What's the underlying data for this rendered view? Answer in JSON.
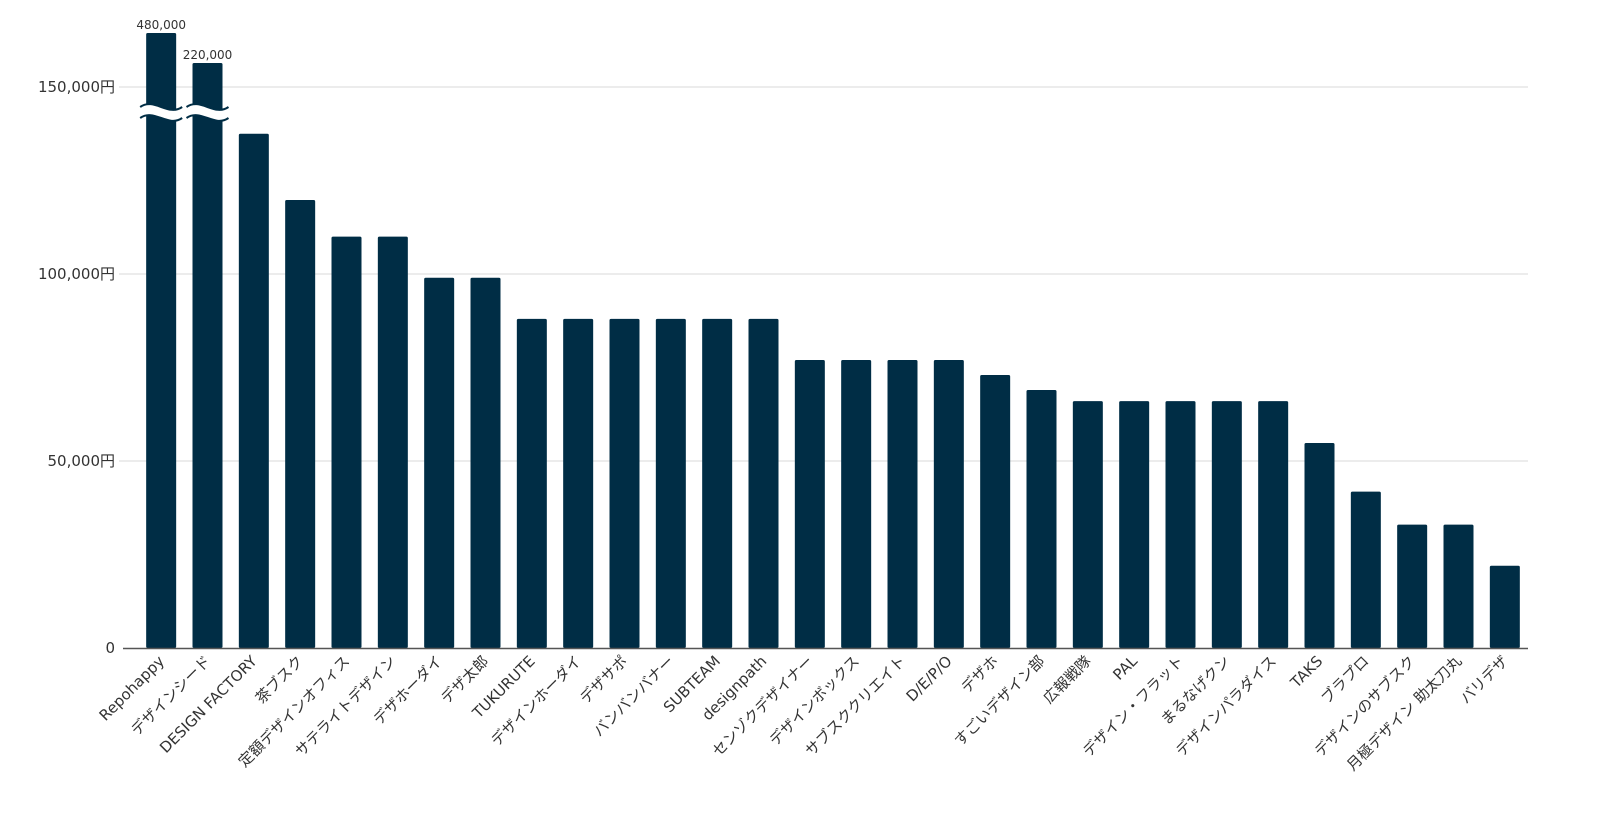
{
  "chart_data": {
    "type": "bar",
    "title": "",
    "xlabel": "",
    "ylabel": "",
    "ylim": [
      0,
      165000
    ],
    "yticks": [
      0,
      50000,
      100000,
      150000
    ],
    "ytick_labels": [
      "0",
      "50,000円",
      "100,000円",
      "150,000円"
    ],
    "grid": true,
    "axis_break": {
      "above": 145000
    },
    "colors": {
      "bar": "#002d45",
      "grid": "#d9d9d9",
      "axis": "#555555",
      "text": "#333333"
    },
    "categories": [
      "Repohappy",
      "デザインシード",
      "DESIGN FACTORY",
      "茶ブスク",
      "定額デザインオフィス",
      "サテライトデザイン",
      "デザホーダイ",
      "デザ太郎",
      "TUKURUTE",
      "デザインホーダイ",
      "デザサポ",
      "バンバンバナー",
      "SUBTEAM",
      "designpath",
      "センゾクデザイナー",
      "デザインボックス",
      "サブスククリエイト",
      "D/E/P/O",
      "デザホ",
      "すごいデザイン部",
      "広報戦隊",
      "PAL",
      "デザイン・フラット",
      "まるなげクン",
      "デザインパラダイス",
      "TAKS",
      "ブラプロ",
      "デザインのサブスク",
      "月極デザイン 助太刀丸",
      "バリデザ"
    ],
    "values": [
      480000,
      220000,
      137500,
      119800,
      110000,
      110000,
      99000,
      99000,
      88000,
      88000,
      88000,
      88000,
      88000,
      88000,
      77000,
      77000,
      77000,
      77000,
      73000,
      69000,
      66000,
      66000,
      66000,
      66000,
      66000,
      54800,
      41800,
      33000,
      33000,
      22000
    ],
    "data_labels": [
      "480,000",
      "220,000",
      "",
      "",
      "",
      "",
      "",
      "",
      "",
      "",
      "",
      "",
      "",
      "",
      "",
      "",
      "",
      "",
      "",
      "",
      "",
      "",
      "",
      "",
      "",
      "",
      "",
      "",
      "",
      ""
    ]
  }
}
